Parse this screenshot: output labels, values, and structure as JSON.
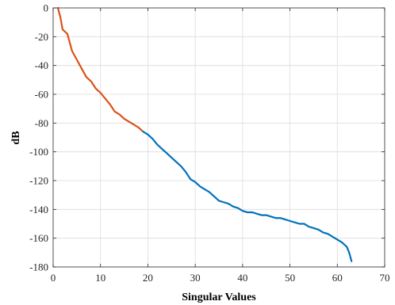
{
  "chart_data": {
    "type": "line",
    "title": "",
    "xlabel": "Singular Values",
    "ylabel": "dB",
    "xlim": [
      0,
      70
    ],
    "ylim": [
      -180,
      0
    ],
    "xticks": [
      0,
      10,
      20,
      30,
      40,
      50,
      60,
      70
    ],
    "yticks": [
      0,
      -20,
      -40,
      -60,
      -80,
      -100,
      -120,
      -140,
      -160,
      -180
    ],
    "grid": true,
    "legend": "none",
    "series": [
      {
        "color": "#d95319",
        "points": [
          [
            1,
            0
          ],
          [
            1.5,
            -6
          ],
          [
            2,
            -15
          ],
          [
            3,
            -18
          ],
          [
            4,
            -30
          ],
          [
            5,
            -36
          ],
          [
            6,
            -42
          ],
          [
            7,
            -48
          ],
          [
            8,
            -51
          ],
          [
            9,
            -56
          ],
          [
            10,
            -59
          ],
          [
            11,
            -63
          ],
          [
            12,
            -67
          ],
          [
            13,
            -72
          ],
          [
            14,
            -74
          ],
          [
            15,
            -77
          ],
          [
            16,
            -79
          ],
          [
            17,
            -81
          ],
          [
            18,
            -83
          ],
          [
            19,
            -86
          ]
        ]
      },
      {
        "color": "#0072bd",
        "points": [
          [
            19,
            -86
          ],
          [
            20,
            -88
          ],
          [
            21,
            -91
          ],
          [
            22,
            -95
          ],
          [
            23,
            -98
          ],
          [
            24,
            -101
          ],
          [
            25,
            -104
          ],
          [
            26,
            -107
          ],
          [
            27,
            -110
          ],
          [
            28,
            -114
          ],
          [
            29,
            -119
          ],
          [
            30,
            -121
          ],
          [
            31,
            -124
          ],
          [
            32,
            -126
          ],
          [
            33,
            -128
          ],
          [
            34,
            -131
          ],
          [
            35,
            -134
          ],
          [
            36,
            -135
          ],
          [
            37,
            -136
          ],
          [
            38,
            -138
          ],
          [
            39,
            -139
          ],
          [
            40,
            -141
          ],
          [
            41,
            -142
          ],
          [
            42,
            -142
          ],
          [
            43,
            -143
          ],
          [
            44,
            -144
          ],
          [
            45,
            -144
          ],
          [
            46,
            -145
          ],
          [
            47,
            -146
          ],
          [
            48,
            -146
          ],
          [
            49,
            -147
          ],
          [
            50,
            -148
          ],
          [
            51,
            -149
          ],
          [
            52,
            -150
          ],
          [
            53,
            -150
          ],
          [
            54,
            -152
          ],
          [
            55,
            -153
          ],
          [
            56,
            -154
          ],
          [
            57,
            -156
          ],
          [
            58,
            -157
          ],
          [
            59,
            -159
          ],
          [
            60,
            -161
          ],
          [
            61,
            -163
          ],
          [
            62,
            -166
          ],
          [
            62.5,
            -170
          ],
          [
            63,
            -176
          ]
        ]
      }
    ]
  }
}
